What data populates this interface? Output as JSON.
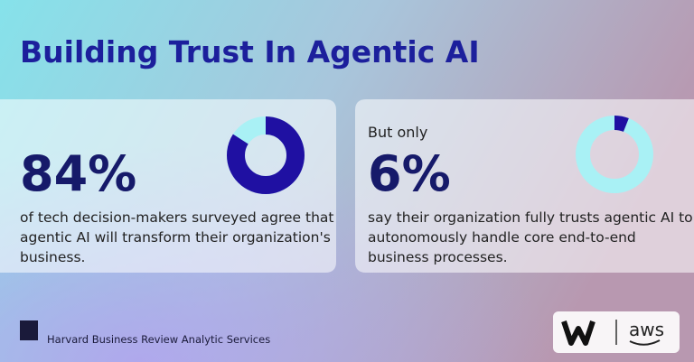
{
  "title": "Building Trust In Agentic AI",
  "cards": [
    {
      "intro": null,
      "stat": {
        "value": 84,
        "label": "84%"
      },
      "lines": [
        "of tech decision-makers surveyed agree that",
        "agentic AI will transform their organization's",
        "business."
      ]
    },
    {
      "intro": "But only",
      "stat": {
        "value": 6,
        "label": "6%"
      },
      "lines": [
        "say their organization fully trusts agentic AI to",
        "autonomously handle core end-to-end",
        "business processes."
      ]
    }
  ],
  "footer": {
    "source": "Harvard Business Review Analytic Services",
    "partner": "aws"
  }
}
